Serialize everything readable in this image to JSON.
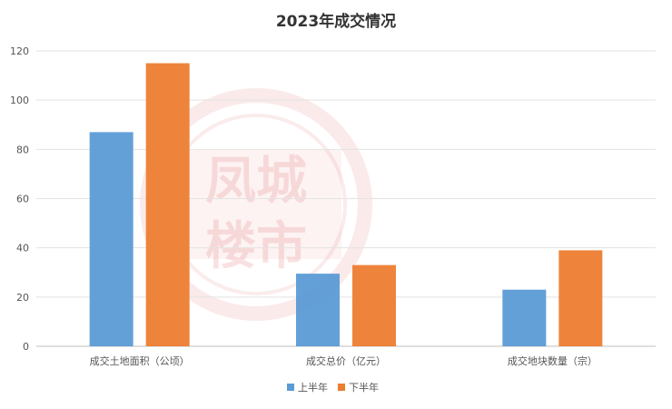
{
  "chart_data": {
    "type": "bar",
    "title": "2023年成交情况",
    "categories": [
      "成交土地面积（公顷）",
      "成交总价（亿元）",
      "成交地块数量（宗）"
    ],
    "series": [
      {
        "name": "上半年",
        "values": [
          87,
          29.5,
          23
        ],
        "color": "#5b9bd5"
      },
      {
        "name": "下半年",
        "values": [
          115,
          33,
          39
        ],
        "color": "#ed7d31"
      }
    ],
    "ylim": [
      0,
      120
    ],
    "yticks": [
      0,
      20,
      40,
      60,
      80,
      100,
      120
    ],
    "grid": true,
    "legend_position": "bottom-center"
  },
  "watermark": {
    "lines": [
      "凤城",
      "楼市"
    ],
    "color": "#e06060"
  }
}
